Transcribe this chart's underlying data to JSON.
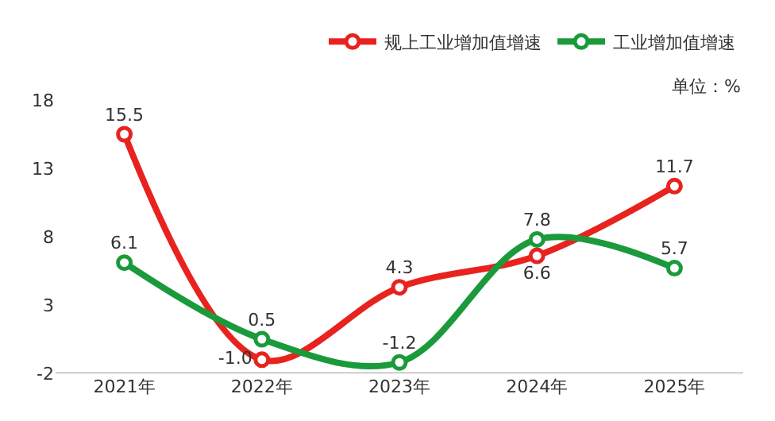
{
  "chart_data": {
    "type": "line",
    "categories": [
      "2021年",
      "2022年",
      "2023年",
      "2024年",
      "2025年"
    ],
    "series": [
      {
        "name": "规上工业增加值增速",
        "color": "#e8231f",
        "values": [
          15.5,
          -1.0,
          4.3,
          6.6,
          11.7
        ],
        "value_labels": [
          "15.5",
          "-1.0",
          "4.3",
          "6.6",
          "11.7"
        ]
      },
      {
        "name": "工业增加值增速",
        "color": "#1b9a3c",
        "values": [
          6.1,
          0.5,
          -1.2,
          7.8,
          5.7
        ],
        "value_labels": [
          "6.1",
          "0.5",
          "-1.2",
          "7.8",
          "5.7"
        ]
      }
    ],
    "ylim": [
      -2,
      18
    ],
    "yticks": [
      -2,
      3,
      8,
      13,
      18
    ],
    "annotations": [
      "单位：%"
    ],
    "legend": "top right",
    "marker": "circle",
    "line_style": "solid"
  }
}
